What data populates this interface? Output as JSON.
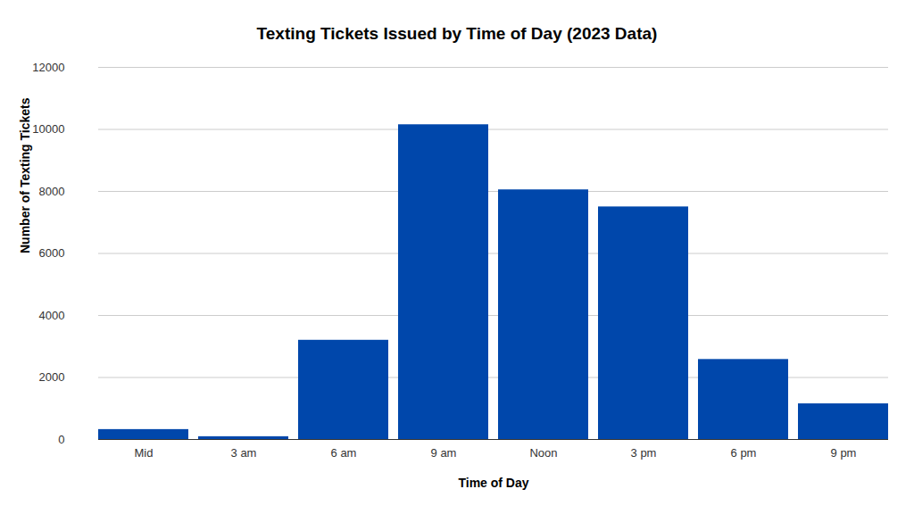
{
  "chart_data": {
    "type": "bar",
    "title": "Texting Tickets Issued by Time of Day (2023 Data)",
    "x_label": "Time of Day",
    "y_label": "Number of Texting Tickets",
    "categories": [
      "Mid",
      "3 am",
      "6 am",
      "9 am",
      "Noon",
      "3 pm",
      "6 pm",
      "9 pm"
    ],
    "values": [
      320,
      90,
      3200,
      10150,
      8050,
      7500,
      2580,
      1150
    ],
    "color": "#0047ab",
    "ylim": [
      0,
      12000
    ],
    "yticks": [
      0,
      2000,
      4000,
      6000,
      8000,
      10000,
      12000
    ],
    "grid": true
  }
}
